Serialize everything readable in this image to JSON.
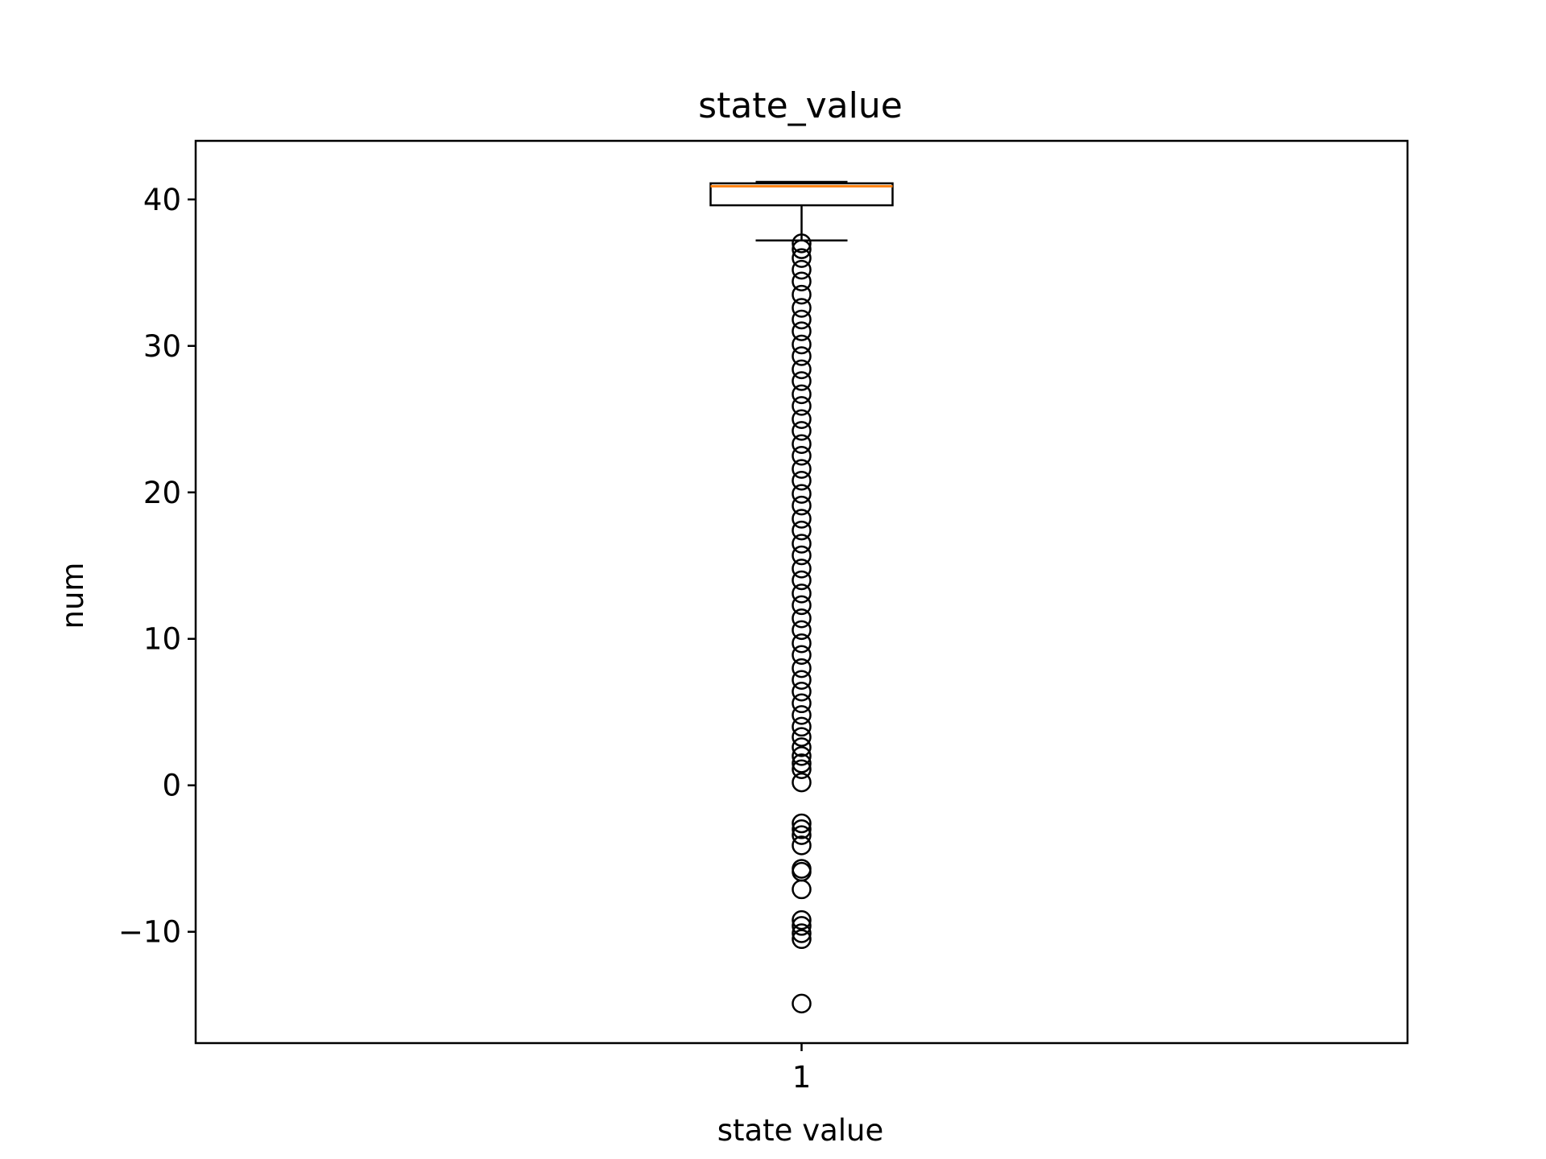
{
  "chart_data": {
    "type": "box",
    "title": "state_value",
    "xlabel": "state value",
    "ylabel": "num",
    "categories": [
      "1"
    ],
    "yticks": [
      -10,
      0,
      10,
      20,
      30,
      40
    ],
    "ytick_labels": [
      "−10",
      "0",
      "10",
      "20",
      "30",
      "40"
    ],
    "ylim": [
      -17.6,
      44
    ],
    "grid": false,
    "legend": "none",
    "boxes": [
      {
        "category": "1",
        "whisker_low": 37.2,
        "q1": 39.6,
        "median": 40.9,
        "q3": 41.1,
        "whisker_high": 41.2,
        "outliers": [
          37.0,
          36.6,
          36.0,
          35.2,
          34.4,
          33.5,
          32.6,
          31.8,
          31.0,
          30.1,
          29.3,
          28.4,
          27.6,
          26.7,
          25.9,
          25.0,
          24.2,
          23.3,
          22.5,
          21.6,
          20.8,
          19.9,
          19.1,
          18.2,
          17.4,
          16.5,
          15.7,
          14.8,
          14.0,
          13.1,
          12.3,
          11.4,
          10.6,
          9.7,
          8.9,
          8.0,
          7.2,
          6.4,
          5.6,
          4.8,
          4.0,
          3.3,
          2.6,
          2.0,
          1.5,
          1.1,
          0.2,
          -2.6,
          -3.0,
          -3.4,
          -4.1,
          -5.7,
          -5.9,
          -7.1,
          -9.2,
          -9.6,
          -10.1,
          -10.5,
          -14.9
        ]
      }
    ],
    "colors": {
      "box": "#000000",
      "median": "#ff7f0e",
      "outlier_edge": "#000000"
    }
  }
}
